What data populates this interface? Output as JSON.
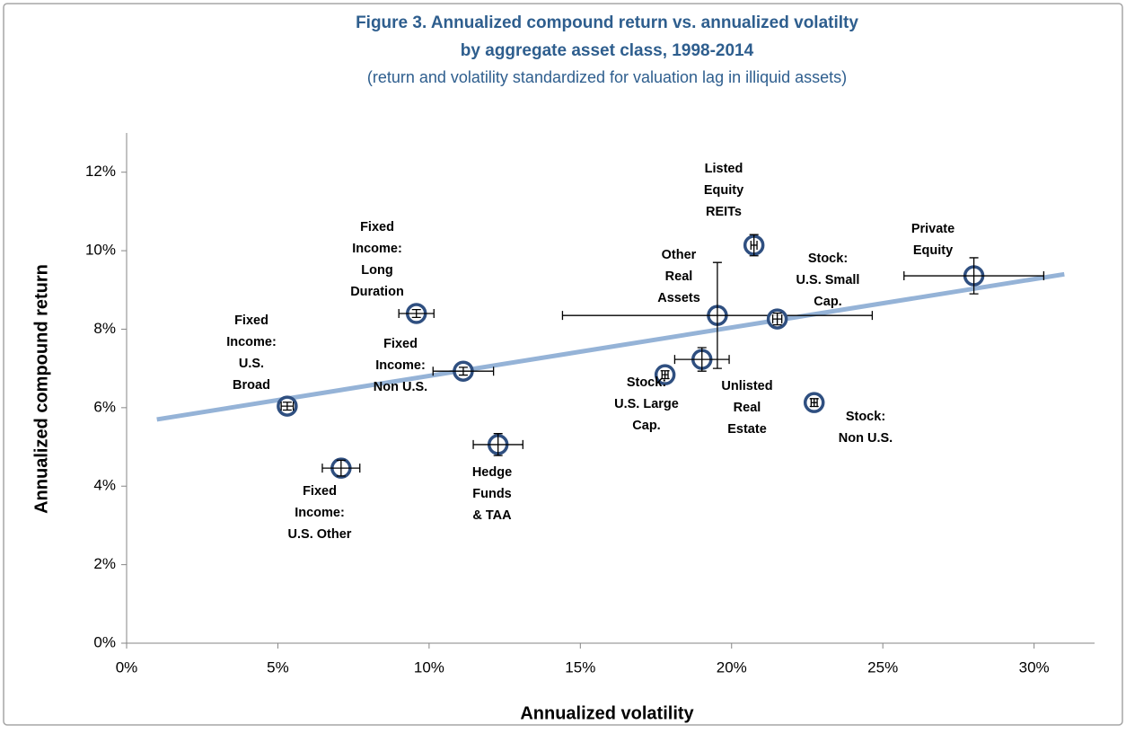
{
  "chart_data": {
    "type": "scatter",
    "title": [
      "Figure 3. Annualized compound return vs. annualized volatilty",
      "by aggregate asset class, 1998-2014"
    ],
    "subtitle": "(return and volatility standardized for valuation lag in illiquid assets)",
    "x_label": "Annualized volatility",
    "y_label": "Annualized compound return",
    "xlim": [
      0,
      32
    ],
    "ylim": [
      0,
      13
    ],
    "xticks": [
      {
        "value": 0,
        "label": "0%"
      },
      {
        "value": 5,
        "label": "5%"
      },
      {
        "value": 10,
        "label": "10%"
      },
      {
        "value": 15,
        "label": "15%"
      },
      {
        "value": 20,
        "label": "20%"
      },
      {
        "value": 25,
        "label": "25%"
      },
      {
        "value": 30,
        "label": "30%"
      }
    ],
    "yticks": [
      {
        "value": 0,
        "label": "0%"
      },
      {
        "value": 2,
        "label": "2%"
      },
      {
        "value": 4,
        "label": "4%"
      },
      {
        "value": 6,
        "label": "6%"
      },
      {
        "value": 8,
        "label": "8%"
      },
      {
        "value": 10,
        "label": "10%"
      },
      {
        "value": 12,
        "label": "12%"
      }
    ],
    "grid": false,
    "color": "#2f4f80",
    "labels": [
      [
        "Fixed",
        "Income:",
        "U.S.",
        "Broad"
      ],
      [
        "Fixed",
        "Income:",
        "U.S. Other"
      ],
      [
        "Fixed",
        "Income:",
        "Long",
        "Duration"
      ],
      [
        "Fixed",
        "Income:",
        "Non U.S."
      ],
      [
        "Hedge",
        "Funds",
        "& TAA"
      ],
      [
        "Stock:",
        "U.S. Large",
        "Cap."
      ],
      [
        "Unlisted",
        "Real",
        "Estate"
      ],
      [
        "Other",
        "Real",
        "Assets"
      ],
      [
        "Stock:",
        "U.S. Small",
        "Cap."
      ],
      [
        "Listed",
        "Equity",
        "REITs"
      ],
      [
        "Stock:",
        "Non U.S."
      ],
      [
        "Private",
        "Equity"
      ]
    ],
    "x": [
      5.31,
      7.09,
      9.58,
      11.13,
      12.28,
      17.8,
      19.02,
      19.53,
      21.51,
      20.74,
      22.73,
      28.01
    ],
    "y": [
      6.04,
      4.46,
      8.4,
      6.93,
      5.06,
      6.84,
      7.23,
      8.35,
      8.26,
      10.14,
      6.13,
      9.36
    ],
    "x_err": [
      0.2,
      0.62,
      0.58,
      1.0,
      0.82,
      0.1,
      0.9,
      5.12,
      0.15,
      0.1,
      0.1,
      2.31
    ],
    "y_err": [
      0.1,
      0.2,
      0.1,
      0.1,
      0.28,
      0.1,
      0.3,
      1.35,
      0.15,
      0.27,
      0.1,
      0.46
    ],
    "trendline": {
      "x": [
        1,
        31
      ],
      "y": [
        5.7,
        9.4
      ],
      "color": "#95b3d7"
    }
  }
}
